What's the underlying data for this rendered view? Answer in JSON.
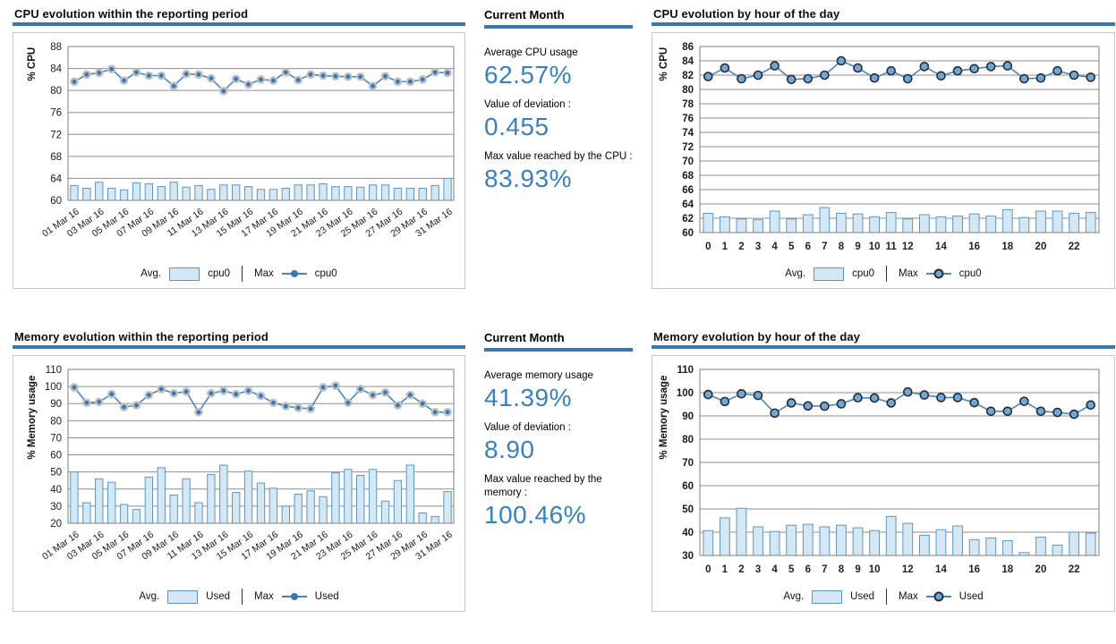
{
  "colors": {
    "accent_blue": "#3878b0",
    "value_blue": "#3a80bd",
    "bar_fill": "#d3e8f4",
    "bar_stroke": "#6096bd",
    "line": "#4a86ba",
    "marker_halo_fill": "#3878b4",
    "marker_halo_ring": "#c0c0c0",
    "marker_ring_fill": "#74a7cc",
    "marker_ring_stroke": "#232b43",
    "grid": "#8f8f8f",
    "plot_border": "#7f7f7f",
    "tick_text": "#1a1a1a"
  },
  "stats": {
    "cpu": {
      "heading": "Current Month",
      "avg_label": "Average CPU usage",
      "avg_value": "62.57%",
      "dev_label": "Value of deviation :",
      "dev_value": "0.455",
      "max_label": "Max value reached by the CPU :",
      "max_value": "83.93%"
    },
    "memory": {
      "heading": "Current Month",
      "avg_label": "Average memory usage",
      "avg_value": "41.39%",
      "dev_label": "Value of deviation :",
      "dev_value": "8.90",
      "max_label": "Max value reached by the memory :",
      "max_value": "100.46%"
    }
  },
  "chart_data": [
    {
      "id": "cpu-daily",
      "type": "bar+line",
      "title": "CPU evolution within the reporting period",
      "xlabel": "",
      "ylabel": "% CPU",
      "ylim": [
        60,
        88
      ],
      "ytick_step": 4,
      "grid": true,
      "legend_position": "bottom",
      "x_labels_rotated": true,
      "marker_style": "halo",
      "categories": [
        "01 Mar 16",
        "02 Mar 16",
        "03 Mar 16",
        "04 Mar 16",
        "05 Mar 16",
        "06 Mar 16",
        "07 Mar 16",
        "08 Mar 16",
        "09 Mar 16",
        "10 Mar 16",
        "11 Mar 16",
        "12 Mar 16",
        "13 Mar 16",
        "14 Mar 16",
        "15 Mar 16",
        "16 Mar 16",
        "17 Mar 16",
        "18 Mar 16",
        "19 Mar 16",
        "20 Mar 16",
        "21 Mar 16",
        "22 Mar 16",
        "23 Mar 16",
        "24 Mar 16",
        "25 Mar 16",
        "26 Mar 16",
        "27 Mar 16",
        "28 Mar 16",
        "29 Mar 16",
        "30 Mar 16",
        "31 Mar 16"
      ],
      "x_labeled_indices": [
        0,
        2,
        4,
        6,
        8,
        10,
        12,
        14,
        16,
        18,
        20,
        22,
        24,
        26,
        28,
        30
      ],
      "series": [
        {
          "name": "cpu0",
          "role": "avg",
          "type": "bar",
          "values": [
            62.7,
            62.2,
            63.3,
            62.2,
            61.9,
            63.2,
            63.0,
            62.5,
            63.3,
            62.4,
            62.7,
            62.0,
            62.8,
            62.8,
            62.5,
            62.0,
            62.0,
            62.2,
            62.8,
            62.8,
            63.0,
            62.5,
            62.5,
            62.4,
            62.8,
            62.8,
            62.2,
            62.2,
            62.2,
            62.7,
            64.0
          ]
        },
        {
          "name": "cpu0",
          "role": "max",
          "type": "line",
          "values": [
            81.6,
            82.9,
            83.2,
            83.9,
            81.8,
            83.3,
            82.7,
            82.7,
            80.8,
            83.0,
            82.9,
            82.2,
            79.9,
            82.1,
            81.1,
            82.0,
            81.8,
            83.3,
            81.9,
            82.9,
            82.7,
            82.6,
            82.5,
            82.5,
            80.8,
            82.6,
            81.6,
            81.6,
            82.0,
            83.3,
            83.2
          ]
        }
      ],
      "legend": {
        "avg_label": "Avg.",
        "avg_series": "cpu0",
        "max_label": "Max",
        "max_series": "cpu0"
      }
    },
    {
      "id": "cpu-hourly",
      "type": "bar+line",
      "title": "CPU evolution by hour of the day",
      "xlabel": "",
      "ylabel": "% CPU",
      "ylim": [
        60,
        86
      ],
      "ytick_step": 2,
      "grid": true,
      "legend_position": "bottom",
      "x_labels_rotated": false,
      "marker_style": "ring",
      "categories": [
        "0",
        "1",
        "2",
        "3",
        "4",
        "5",
        "6",
        "7",
        "8",
        "9",
        "10",
        "11",
        "12",
        "13",
        "14",
        "15",
        "16",
        "17",
        "18",
        "19",
        "20",
        "21",
        "22",
        "23"
      ],
      "x_labeled_indices": [
        0,
        1,
        2,
        3,
        4,
        5,
        6,
        7,
        8,
        9,
        10,
        11,
        12,
        14,
        16,
        18,
        20,
        22
      ],
      "series": [
        {
          "name": "cpu0",
          "role": "avg",
          "type": "bar",
          "values": [
            62.7,
            62.2,
            61.9,
            61.8,
            63.0,
            61.9,
            62.5,
            63.5,
            62.7,
            62.6,
            62.2,
            62.8,
            61.9,
            62.5,
            62.2,
            62.3,
            62.6,
            62.3,
            63.2,
            62.1,
            63.0,
            63.0,
            62.7,
            62.8
          ]
        },
        {
          "name": "cpu0",
          "role": "max",
          "type": "line",
          "values": [
            81.8,
            83.0,
            81.5,
            82.0,
            83.3,
            81.4,
            81.5,
            82.0,
            84.0,
            83.0,
            81.6,
            82.6,
            81.5,
            83.2,
            81.9,
            82.6,
            82.9,
            83.2,
            83.3,
            81.5,
            81.6,
            82.6,
            82.0,
            81.7
          ]
        }
      ],
      "legend": {
        "avg_label": "Avg.",
        "avg_series": "cpu0",
        "max_label": "Max",
        "max_series": "cpu0"
      }
    },
    {
      "id": "memory-daily",
      "type": "bar+line",
      "title": "Memory evolution within the reporting period",
      "xlabel": "",
      "ylabel": "% Memory usage",
      "ylim": [
        20,
        110
      ],
      "ytick_step": 10,
      "grid": true,
      "legend_position": "bottom",
      "x_labels_rotated": true,
      "marker_style": "halo",
      "categories": [
        "01 Mar 16",
        "02 Mar 16",
        "03 Mar 16",
        "04 Mar 16",
        "05 Mar 16",
        "06 Mar 16",
        "07 Mar 16",
        "08 Mar 16",
        "09 Mar 16",
        "10 Mar 16",
        "11 Mar 16",
        "12 Mar 16",
        "13 Mar 16",
        "14 Mar 16",
        "15 Mar 16",
        "16 Mar 16",
        "17 Mar 16",
        "18 Mar 16",
        "19 Mar 16",
        "20 Mar 16",
        "21 Mar 16",
        "22 Mar 16",
        "23 Mar 16",
        "24 Mar 16",
        "25 Mar 16",
        "26 Mar 16",
        "27 Mar 16",
        "28 Mar 16",
        "29 Mar 16",
        "30 Mar 16",
        "31 Mar 16"
      ],
      "x_labeled_indices": [
        0,
        2,
        4,
        6,
        8,
        10,
        12,
        14,
        16,
        18,
        20,
        22,
        24,
        26,
        28,
        30
      ],
      "series": [
        {
          "name": "Used",
          "role": "avg",
          "type": "bar",
          "values": [
            50,
            32,
            46,
            44,
            31,
            28,
            47,
            52.5,
            36.5,
            46,
            32,
            48.5,
            54,
            38,
            50.5,
            43.5,
            40.5,
            30,
            37,
            39,
            35.5,
            49.5,
            51.5,
            48,
            51.5,
            33,
            45,
            54,
            26,
            24,
            38.5
          ]
        },
        {
          "name": "Used",
          "role": "max",
          "type": "line",
          "values": [
            99.5,
            90.5,
            91,
            95.5,
            88,
            89,
            95,
            98.5,
            96,
            97,
            85,
            96,
            97.5,
            95.5,
            97.5,
            94.5,
            90.5,
            88.5,
            87.5,
            87,
            99.5,
            100.5,
            90.5,
            98.5,
            95,
            96.5,
            89,
            95,
            90,
            85,
            85
          ]
        }
      ],
      "legend": {
        "avg_label": "Avg.",
        "avg_series": "Used",
        "max_label": "Max",
        "max_series": "Used"
      }
    },
    {
      "id": "memory-hourly",
      "type": "bar+line",
      "title": "Memory evolution by hour of the day",
      "xlabel": "",
      "ylabel": "% Memory usage",
      "ylim": [
        30,
        110
      ],
      "ytick_step": 10,
      "grid": true,
      "legend_position": "bottom",
      "x_labels_rotated": false,
      "marker_style": "ring",
      "categories": [
        "0",
        "1",
        "2",
        "3",
        "4",
        "5",
        "6",
        "7",
        "8",
        "9",
        "10",
        "11",
        "12",
        "13",
        "14",
        "15",
        "16",
        "17",
        "18",
        "19",
        "20",
        "21",
        "22",
        "23"
      ],
      "x_labeled_indices": [
        0,
        1,
        2,
        3,
        4,
        5,
        6,
        7,
        8,
        9,
        10,
        12,
        14,
        16,
        18,
        20,
        22
      ],
      "series": [
        {
          "name": "Used",
          "role": "avg",
          "type": "bar",
          "values": [
            40.7,
            46.2,
            50.3,
            42.3,
            40.3,
            43.0,
            43.4,
            42.3,
            43.0,
            41.9,
            40.7,
            46.8,
            43.8,
            38.7,
            41.1,
            42.7,
            36.8,
            37.5,
            36.3,
            31.2,
            37.9,
            34.4,
            40.0,
            39.6
          ]
        },
        {
          "name": "Used",
          "role": "max",
          "type": "line",
          "values": [
            99.2,
            96.2,
            99.5,
            98.8,
            91.2,
            95.6,
            94.3,
            94.2,
            95.2,
            97.8,
            97.7,
            95.6,
            100.3,
            99.0,
            97.9,
            97.9,
            95.7,
            92.0,
            92.0,
            96.3,
            92.0,
            91.5,
            90.7,
            94.7
          ]
        }
      ],
      "legend": {
        "avg_label": "Avg.",
        "avg_series": "Used",
        "max_label": "Max",
        "max_series": "Used"
      }
    }
  ]
}
